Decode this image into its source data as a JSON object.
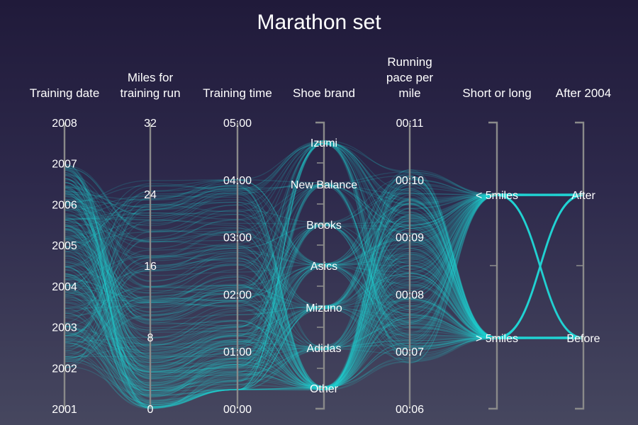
{
  "chart_data": {
    "type": "parallel-sets",
    "title": "Marathon set",
    "line_color": "#22d3d3",
    "axis_color": "#8a8a8a",
    "dimensions": [
      {
        "key": "date",
        "label": [
          "Training date"
        ],
        "kind": "numeric",
        "range": [
          2001,
          2008
        ],
        "ticks": [
          2001,
          2002,
          2003,
          2004,
          2005,
          2006,
          2007,
          2008
        ],
        "tick_labels": [
          "2001",
          "2002",
          "2003",
          "2004",
          "2005",
          "2006",
          "2007",
          "2008"
        ]
      },
      {
        "key": "miles",
        "label": [
          "Miles for",
          "training run"
        ],
        "kind": "numeric",
        "range": [
          0,
          32
        ],
        "ticks": [
          0,
          8,
          16,
          24,
          32
        ],
        "tick_labels": [
          "0",
          "8",
          "16",
          "24",
          "32"
        ]
      },
      {
        "key": "time",
        "label": [
          "Training time"
        ],
        "kind": "numeric",
        "range": [
          0,
          300
        ],
        "ticks": [
          0,
          60,
          120,
          180,
          240,
          300
        ],
        "tick_labels": [
          "00:00",
          "01:00",
          "02:00",
          "03:00",
          "04:00",
          "05:00"
        ]
      },
      {
        "key": "shoe",
        "label": [
          "Shoe brand"
        ],
        "kind": "categorical",
        "categories": [
          "Other",
          "Adidas",
          "Mizuno",
          "Asics",
          "Brooks",
          "New Balance",
          "Izumi"
        ]
      },
      {
        "key": "pace",
        "label": [
          "Running",
          "pace per",
          "mile"
        ],
        "kind": "numeric",
        "range": [
          6,
          11
        ],
        "ticks": [
          6,
          7,
          8,
          9,
          10,
          11
        ],
        "tick_labels": [
          "00:06",
          "00:07",
          "00:08",
          "00:09",
          "00:10",
          "00:11"
        ]
      },
      {
        "key": "length",
        "label": [
          "Short or long"
        ],
        "kind": "categorical",
        "categories": [
          "> 5miles",
          "< 5miles"
        ]
      },
      {
        "key": "era",
        "label": [
          "After 2004"
        ],
        "kind": "categorical",
        "categories": [
          "Before",
          "After"
        ]
      }
    ],
    "categories_by_share": {
      "shoe": {
        "Other": 0.34,
        "Adidas": 0.12,
        "Mizuno": 0.12,
        "Asics": 0.16,
        "Brooks": 0.1,
        "New Balance": 0.06,
        "Izumi": 0.1
      },
      "length": {
        "> 5miles": 0.52,
        "< 5miles": 0.48
      },
      "era": {
        "Before": 0.5,
        "After": 0.5
      }
    },
    "date_range": [
      2002.0,
      2007.0
    ],
    "miles_range": [
      0,
      26
    ],
    "time_range": [
      20,
      240
    ],
    "pace_range": [
      6.8,
      10.2
    ]
  }
}
